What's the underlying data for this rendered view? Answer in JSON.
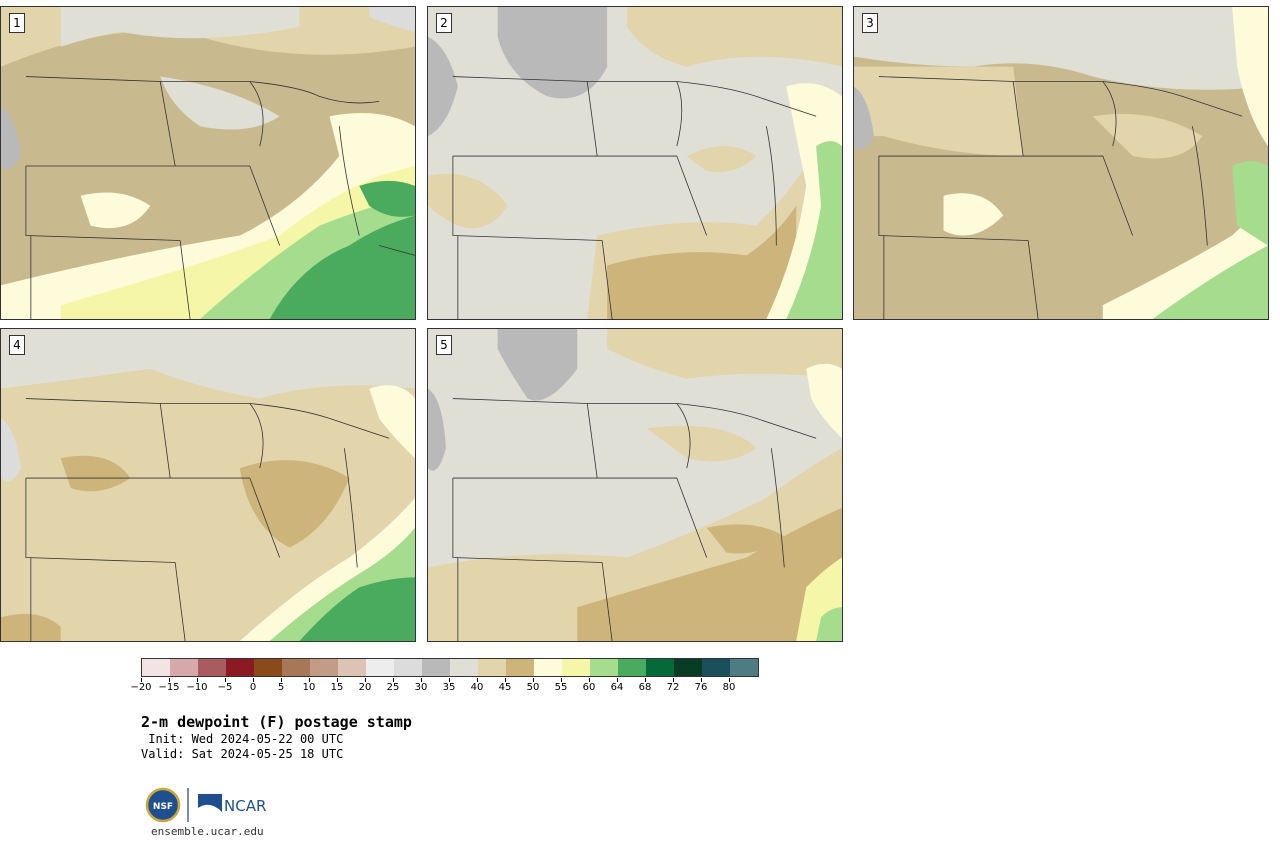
{
  "panels": [
    {
      "label": "1"
    },
    {
      "label": "2"
    },
    {
      "label": "3"
    },
    {
      "label": "4"
    },
    {
      "label": "5"
    }
  ],
  "colorbar": {
    "colors": [
      "#f2e4e4",
      "#d6a8aa",
      "#a95c60",
      "#8c1a23",
      "#8a4a1a",
      "#a8775a",
      "#c39c88",
      "#dcc3b4",
      "#ededed",
      "#dcdcdc",
      "#b9b9b9",
      "#dfdfd5",
      "#e2d4ab",
      "#cdb47b",
      "#fdfbd9",
      "#f6f6a9",
      "#a6dc8e",
      "#4aaa5e",
      "#05693a",
      "#083c24",
      "#1c4f5c",
      "#4f7c82"
    ],
    "ticks": [
      "−20",
      "−15",
      "−10",
      "−5",
      "0",
      "5",
      "10",
      "15",
      "20",
      "25",
      "30",
      "35",
      "40",
      "45",
      "50",
      "55",
      "60",
      "64",
      "68",
      "72",
      "76",
      "80"
    ]
  },
  "title": "2-m dewpoint (F) postage stamp",
  "init_line": " Init: Wed 2024-05-22 00 UTC",
  "valid_line": "Valid: Sat 2024-05-25 18 UTC",
  "logo": {
    "nsf_text": "NSF",
    "ncar_text": "NCAR"
  },
  "url": "ensemble.ucar.edu"
}
